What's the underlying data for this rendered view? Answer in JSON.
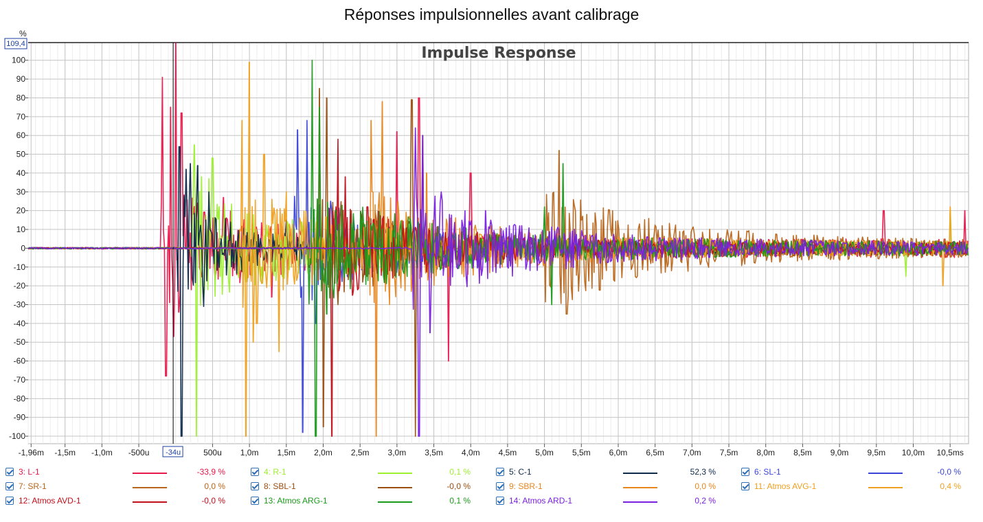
{
  "page_title": "Réponses impulsionnelles avant calibrage",
  "chart_data": {
    "type": "line",
    "title": "Impulse Response",
    "ylabel": "%",
    "xlim": [
      -2.0,
      10.75
    ],
    "ylim": [
      -104,
      109.4
    ],
    "cursor": {
      "x_label": "-34u",
      "y_label": "109,4",
      "x": -0.034
    },
    "x_ticks": [
      {
        "v": -1.96,
        "label": "-1,96m"
      },
      {
        "v": -1.5,
        "label": "-1,5m"
      },
      {
        "v": -1.0,
        "label": "-1,0m"
      },
      {
        "v": -0.5,
        "label": "-500u"
      },
      {
        "v": 0.5,
        "label": "500u"
      },
      {
        "v": 1.0,
        "label": "1,0m"
      },
      {
        "v": 1.5,
        "label": "1,5m"
      },
      {
        "v": 2.0,
        "label": "2,0m"
      },
      {
        "v": 2.5,
        "label": "2,5m"
      },
      {
        "v": 3.0,
        "label": "3,0m"
      },
      {
        "v": 3.5,
        "label": "3,5m"
      },
      {
        "v": 4.0,
        "label": "4,0m"
      },
      {
        "v": 4.5,
        "label": "4,5m"
      },
      {
        "v": 5.0,
        "label": "5,0m"
      },
      {
        "v": 5.5,
        "label": "5,5m"
      },
      {
        "v": 6.0,
        "label": "6,0m"
      },
      {
        "v": 6.5,
        "label": "6,5m"
      },
      {
        "v": 7.0,
        "label": "7,0m"
      },
      {
        "v": 7.5,
        "label": "7,5m"
      },
      {
        "v": 8.0,
        "label": "8,0m"
      },
      {
        "v": 8.5,
        "label": "8,5m"
      },
      {
        "v": 9.0,
        "label": "9,0m"
      },
      {
        "v": 9.5,
        "label": "9,5m"
      },
      {
        "v": 10.0,
        "label": "10,0m"
      },
      {
        "v": 10.5,
        "label": "10,5ms"
      }
    ],
    "y_ticks": [
      {
        "v": 100,
        "label": "100"
      },
      {
        "v": 90,
        "label": "90"
      },
      {
        "v": 80,
        "label": "80"
      },
      {
        "v": 70,
        "label": "70"
      },
      {
        "v": 60,
        "label": "60"
      },
      {
        "v": 50,
        "label": "50"
      },
      {
        "v": 40,
        "label": "40"
      },
      {
        "v": 30,
        "label": "30"
      },
      {
        "v": 20,
        "label": "20"
      },
      {
        "v": 10,
        "label": "10"
      },
      {
        "v": 0,
        "label": "0"
      },
      {
        "v": -10,
        "label": "-10"
      },
      {
        "v": -20,
        "label": "-20"
      },
      {
        "v": -30,
        "label": "-30"
      },
      {
        "v": -40,
        "label": "-40"
      },
      {
        "v": -50,
        "label": "-50"
      },
      {
        "v": -60,
        "label": "-60"
      },
      {
        "v": -70,
        "label": "-70"
      },
      {
        "v": -80,
        "label": "-80"
      },
      {
        "v": -90,
        "label": "-90"
      },
      {
        "v": -100,
        "label": "-100"
      }
    ],
    "grid": true,
    "series": [
      {
        "name": "3: L-1",
        "value": "-33,9 %",
        "color": "#e8174a",
        "peaks": [
          [
            -0.18,
            91
          ],
          [
            -0.13,
            -68
          ],
          [
            -0.07,
            75
          ],
          [
            -0.03,
            -47
          ],
          [
            0.0,
            109
          ],
          [
            0.04,
            -34
          ],
          [
            0.08,
            72
          ],
          [
            0.3,
            24
          ],
          [
            0.65,
            27
          ],
          [
            1.3,
            -26
          ],
          [
            3.0,
            62
          ],
          [
            3.3,
            80
          ],
          [
            3.7,
            -60
          ],
          [
            4.0,
            40
          ],
          [
            9.6,
            20
          ],
          [
            10.7,
            20
          ]
        ],
        "onset": -0.2,
        "decay": 1.4,
        "noise": 5
      },
      {
        "name": "4: R-1",
        "value": "0,1 %",
        "color": "#9cf02e",
        "peaks": [
          [
            0.25,
            55
          ],
          [
            0.28,
            -100
          ],
          [
            0.35,
            38
          ],
          [
            0.45,
            37
          ],
          [
            0.5,
            48
          ],
          [
            0.6,
            -15
          ],
          [
            9.9,
            -15
          ],
          [
            10.5,
            20
          ]
        ],
        "onset": 0.2,
        "decay": 1.5,
        "noise": 3.5
      },
      {
        "name": "5: C-1",
        "value": "52,3 %",
        "color": "#0e2a4a",
        "peaks": [
          [
            0.05,
            54
          ],
          [
            0.08,
            -100
          ],
          [
            0.14,
            42
          ],
          [
            0.2,
            45
          ],
          [
            0.3,
            44
          ],
          [
            0.38,
            -31
          ],
          [
            0.45,
            30
          ],
          [
            1.5,
            15
          ]
        ],
        "onset": 0.02,
        "decay": 0.8,
        "noise": 3
      },
      {
        "name": "6: SL-1",
        "value": "-0,0 %",
        "color": "#3a45d8",
        "peaks": [
          [
            1.65,
            63
          ],
          [
            1.72,
            -98
          ],
          [
            1.78,
            68
          ],
          [
            1.9,
            -40
          ],
          [
            2.1,
            25
          ]
        ],
        "onset": 1.6,
        "decay": 1.2,
        "noise": 3.5
      },
      {
        "name": "7: SR-1",
        "value": "0,0 %",
        "color": "#b8651a",
        "peaks": [
          [
            5.2,
            52
          ],
          [
            5.3,
            -35
          ],
          [
            5.5,
            15
          ]
        ],
        "onset": 5.0,
        "decay": 1.6,
        "noise": 4
      },
      {
        "name": "8: SBL-1",
        "value": "-0,0 %",
        "color": "#9a4e10",
        "peaks": [
          [
            1.95,
            85
          ],
          [
            2.0,
            -95
          ],
          [
            2.05,
            80
          ],
          [
            2.2,
            -30
          ],
          [
            3.2,
            79
          ],
          [
            3.25,
            -100
          ],
          [
            3.35,
            60
          ]
        ],
        "onset": 1.9,
        "decay": 1.3,
        "noise": 4
      },
      {
        "name": "9: SBR-1",
        "value": "0,0 %",
        "color": "#e8861e",
        "peaks": [
          [
            2.65,
            68
          ],
          [
            2.72,
            -100
          ],
          [
            2.8,
            78
          ],
          [
            2.9,
            -30
          ],
          [
            3.4,
            40
          ]
        ],
        "onset": 2.6,
        "decay": 1.4,
        "noise": 4
      },
      {
        "name": "11: Atmos AVG-1",
        "value": "0,4 %",
        "color": "#f0a020",
        "peaks": [
          [
            0.9,
            68
          ],
          [
            0.95,
            -100
          ],
          [
            1.0,
            99
          ],
          [
            1.05,
            -50
          ],
          [
            1.1,
            -40
          ],
          [
            1.2,
            50
          ],
          [
            1.4,
            -55
          ],
          [
            1.5,
            30
          ],
          [
            10.4,
            -20
          ],
          [
            10.5,
            22
          ]
        ],
        "onset": 0.85,
        "decay": 1.6,
        "noise": 4
      },
      {
        "name": "12: Atmos AVD-1",
        "value": "-0,0 %",
        "color": "#c0101a",
        "peaks": [
          [
            2.12,
            -100
          ],
          [
            2.2,
            58
          ],
          [
            2.3,
            38
          ],
          [
            2.4,
            -25
          ],
          [
            2.6,
            22
          ]
        ],
        "onset": 2.05,
        "decay": 1.2,
        "noise": 3
      },
      {
        "name": "13: Atmos ARG-1",
        "value": "0,1 %",
        "color": "#1a9a1a",
        "peaks": [
          [
            1.85,
            100
          ],
          [
            1.9,
            -100
          ],
          [
            1.95,
            75
          ],
          [
            2.05,
            -35
          ],
          [
            5.25,
            45
          ],
          [
            5.1,
            -30
          ],
          [
            5.0,
            22
          ]
        ],
        "onset": 1.8,
        "decay": 1.6,
        "noise": 4
      },
      {
        "name": "14: Atmos ARD-1",
        "value": "0,2 %",
        "color": "#7a20e0",
        "peaks": [
          [
            3.25,
            64
          ],
          [
            3.3,
            -100
          ],
          [
            3.35,
            60
          ],
          [
            3.45,
            -45
          ],
          [
            3.6,
            30
          ],
          [
            4.2,
            20
          ]
        ],
        "onset": 3.2,
        "decay": 1.5,
        "noise": 3.5
      }
    ]
  }
}
